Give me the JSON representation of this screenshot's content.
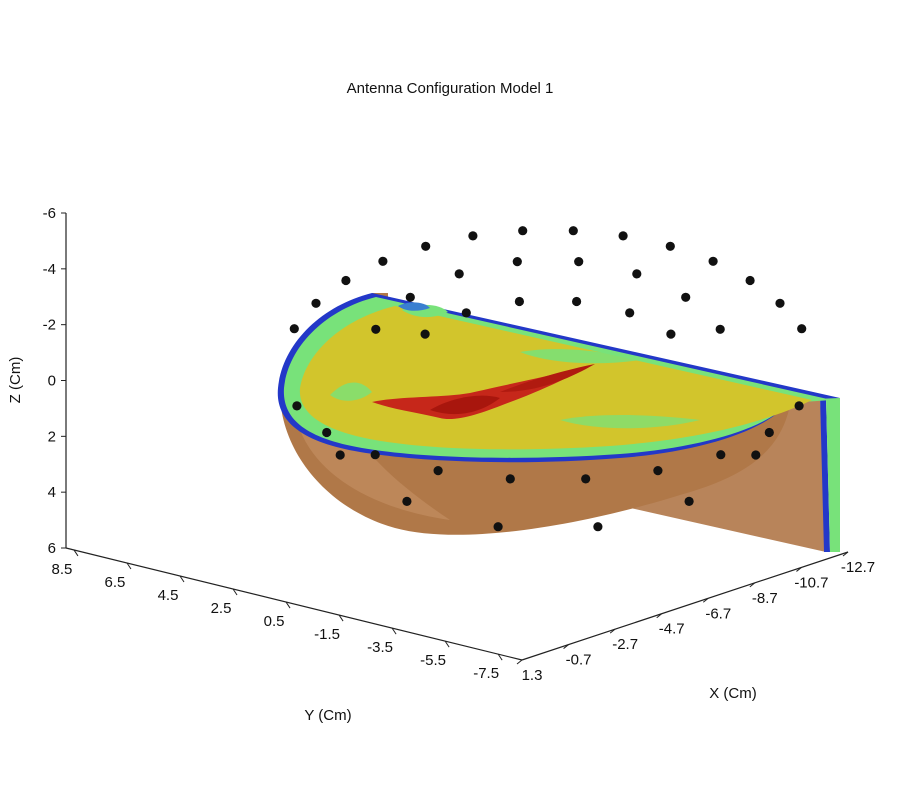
{
  "chart_data": {
    "type": "scatter",
    "title": "Antenna Configuration Model 1",
    "xlabel": "X (Cm)",
    "ylabel": "Y (Cm)",
    "zlabel": "Z (Cm)",
    "x_ticks": [
      "1.3",
      "-0.7",
      "-2.7",
      "-4.7",
      "-6.7",
      "-8.7",
      "-10.7",
      "-12.7"
    ],
    "y_ticks": [
      "8.5",
      "6.5",
      "4.5",
      "2.5",
      "0.5",
      "-1.5",
      "-3.5",
      "-5.5",
      "-7.5"
    ],
    "z_ticks": [
      "-6",
      "-4",
      "-2",
      "0",
      "2",
      "4",
      "6"
    ],
    "z_reversed": true,
    "grid": false,
    "surface": "hemispherical breast model cross-section with embedded tumor region",
    "colors": {
      "skin": "#b07848",
      "outline": "#2338c8",
      "tissue_green": "#78e27a",
      "tissue_yellow": "#d2c52c",
      "tumor": "#c6271a",
      "antenna": "#111111"
    },
    "antenna_count": 44
  }
}
